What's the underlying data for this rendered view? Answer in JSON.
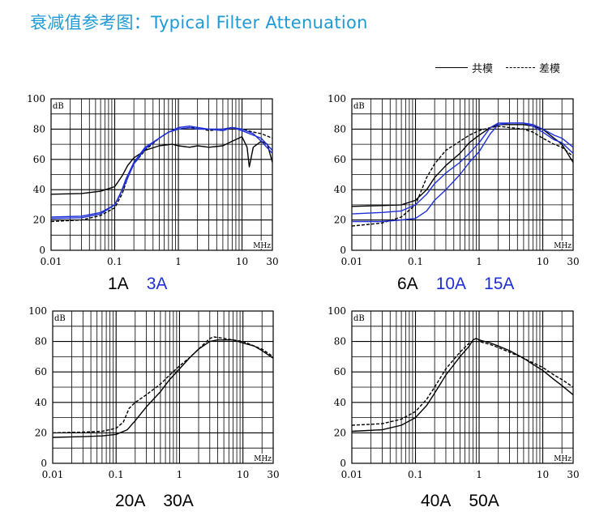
{
  "page": {
    "title": "衰减值参考图：Typical Filter Attenuation"
  },
  "legend": {
    "cm_label": "共模",
    "dm_label": "差模"
  },
  "colors": {
    "title": "#1e9ad6",
    "black_series": "#000000",
    "blue_series": "#1e2fd6"
  },
  "chart_data": [
    {
      "type": "line",
      "x_scale": "log",
      "xlim": [
        0.01,
        30
      ],
      "ylim": [
        0,
        100
      ],
      "x_ticks": [
        "0.01",
        "0.1",
        "1",
        "10",
        "30"
      ],
      "y_ticks": [
        "0",
        "20",
        "40",
        "60",
        "80",
        "100"
      ],
      "ylabel": "dB",
      "xlabel": "MHz",
      "captions": [
        {
          "text": "1A",
          "color": "#000000"
        },
        {
          "text": "3A",
          "color": "#1e2fd6"
        }
      ],
      "series": [
        {
          "mode": "共模",
          "color": "#000000",
          "dash": false,
          "x": [
            0.01,
            0.03,
            0.06,
            0.1,
            0.13,
            0.16,
            0.2,
            0.3,
            0.5,
            0.8,
            1,
            1.5,
            2,
            3,
            5,
            7,
            10,
            12,
            13,
            15,
            20,
            25,
            30
          ],
          "y": [
            37,
            37.5,
            39,
            42,
            49,
            56,
            61,
            66,
            69,
            70,
            69,
            68,
            69,
            68,
            69,
            72,
            75,
            68,
            55,
            68,
            72,
            70,
            58
          ]
        },
        {
          "mode": "差模",
          "color": "#000000",
          "dash": true,
          "x": [
            0.01,
            0.03,
            0.06,
            0.1,
            0.13,
            0.17,
            0.2,
            0.3,
            0.5,
            0.7,
            1,
            1.5,
            2,
            3,
            5,
            7,
            10,
            15,
            20,
            30
          ],
          "y": [
            19,
            20,
            23,
            28,
            37,
            51,
            57,
            66,
            74,
            78,
            80,
            81,
            81,
            79,
            80,
            81,
            80,
            78,
            77,
            74
          ]
        },
        {
          "mode": "共模",
          "color": "#1e2fd6",
          "dash": false,
          "x": [
            0.01,
            0.03,
            0.06,
            0.1,
            0.12,
            0.15,
            0.2,
            0.3,
            0.5,
            0.7,
            1,
            1.5,
            2,
            3,
            5,
            7,
            10,
            15,
            20,
            30
          ],
          "y": [
            21,
            21.5,
            24,
            30,
            36,
            47,
            58,
            68,
            74,
            78,
            81,
            82,
            81,
            80,
            80,
            81,
            79,
            76,
            74,
            66
          ]
        },
        {
          "mode": "差模",
          "color": "#1e2fd6",
          "dash": false,
          "x": [
            0.01,
            0.03,
            0.06,
            0.1,
            0.15,
            0.2,
            0.3,
            0.5,
            0.7,
            1,
            1.5,
            2,
            3,
            5,
            7,
            10,
            15,
            20,
            30
          ],
          "y": [
            22,
            22.5,
            25,
            30,
            45,
            57,
            67,
            74,
            78,
            80,
            81,
            80,
            80,
            79,
            81,
            80,
            77,
            72,
            64
          ]
        }
      ]
    },
    {
      "type": "line",
      "x_scale": "log",
      "xlim": [
        0.01,
        30
      ],
      "ylim": [
        0,
        100
      ],
      "x_ticks": [
        "0.01",
        "0.1",
        "1",
        "10",
        "30"
      ],
      "y_ticks": [
        "0",
        "20",
        "40",
        "60",
        "80",
        "100"
      ],
      "ylabel": "dB",
      "xlabel": "MHz",
      "captions": [
        {
          "text": "6A",
          "color": "#000000"
        },
        {
          "text": "10A",
          "color": "#1e2fd6"
        },
        {
          "text": "15A",
          "color": "#1e2fd6"
        }
      ],
      "series": [
        {
          "mode": "共模",
          "color": "#000000",
          "dash": false,
          "x": [
            0.01,
            0.03,
            0.06,
            0.1,
            0.15,
            0.2,
            0.3,
            0.5,
            0.7,
            1,
            1.5,
            2,
            3,
            5,
            7,
            10,
            15,
            20,
            30
          ],
          "y": [
            29,
            29.5,
            30,
            33,
            40,
            48,
            56,
            64,
            71,
            76,
            81,
            83,
            83,
            83,
            82,
            80,
            74,
            70,
            58
          ]
        },
        {
          "mode": "差模",
          "color": "#000000",
          "dash": true,
          "x": [
            0.01,
            0.03,
            0.06,
            0.1,
            0.15,
            0.2,
            0.3,
            0.5,
            0.7,
            1,
            1.5,
            2,
            3,
            5,
            7,
            10,
            15,
            20,
            30
          ],
          "y": [
            16,
            18,
            22,
            30,
            48,
            57,
            66,
            72,
            76,
            79,
            81,
            82,
            81,
            80,
            78,
            74,
            70,
            68,
            62
          ]
        },
        {
          "mode": "共模",
          "color": "#1e2fd6",
          "dash": false,
          "x": [
            0.01,
            0.03,
            0.06,
            0.1,
            0.15,
            0.2,
            0.3,
            0.5,
            0.7,
            1,
            1.5,
            2,
            3,
            5,
            7,
            10,
            15,
            20,
            30
          ],
          "y": [
            19,
            19,
            20,
            21,
            26,
            33,
            40,
            50,
            58,
            65,
            77,
            83,
            84,
            84,
            82,
            78,
            73,
            71,
            64
          ]
        },
        {
          "mode": "差模",
          "color": "#1e2fd6",
          "dash": false,
          "x": [
            0.01,
            0.03,
            0.06,
            0.1,
            0.15,
            0.2,
            0.3,
            0.5,
            0.7,
            1,
            1.5,
            2,
            3,
            5,
            7,
            10,
            15,
            20,
            30
          ],
          "y": [
            24,
            25,
            26,
            30,
            37,
            44,
            51,
            58,
            64,
            71,
            81,
            84,
            84,
            84,
            83,
            80,
            76,
            74,
            68
          ]
        }
      ]
    },
    {
      "type": "line",
      "x_scale": "log",
      "xlim": [
        0.01,
        30
      ],
      "ylim": [
        0,
        100
      ],
      "x_ticks": [
        "0.01",
        "0.1",
        "1",
        "10",
        "30"
      ],
      "y_ticks": [
        "0",
        "20",
        "40",
        "60",
        "80",
        "100"
      ],
      "ylabel": "dB",
      "xlabel": "MHz",
      "captions": [
        {
          "text": "20A",
          "color": "#000000"
        },
        {
          "text": "30A",
          "color": "#000000"
        }
      ],
      "series": [
        {
          "mode": "共模",
          "color": "#000000",
          "dash": false,
          "x": [
            0.01,
            0.03,
            0.06,
            0.1,
            0.15,
            0.2,
            0.3,
            0.5,
            0.7,
            1,
            1.5,
            2,
            3,
            4,
            5,
            7,
            10,
            15,
            20,
            30
          ],
          "y": [
            17,
            17.5,
            18,
            19,
            22,
            28,
            37,
            47,
            55,
            62,
            70,
            75,
            80,
            81,
            81,
            81,
            79,
            77,
            74,
            69
          ]
        },
        {
          "mode": "差模",
          "color": "#000000",
          "dash": true,
          "x": [
            0.01,
            0.03,
            0.06,
            0.1,
            0.13,
            0.16,
            0.2,
            0.3,
            0.5,
            0.7,
            1,
            1.5,
            2,
            3,
            3.5,
            5,
            7,
            10,
            15,
            20,
            30
          ],
          "y": [
            20,
            20.5,
            21,
            23,
            27,
            36,
            40,
            45,
            52,
            58,
            64,
            70,
            75,
            82,
            83,
            82,
            81,
            80,
            77,
            75,
            70
          ]
        }
      ]
    },
    {
      "type": "line",
      "x_scale": "log",
      "xlim": [
        0.01,
        30
      ],
      "ylim": [
        0,
        100
      ],
      "x_ticks": [
        "0.01",
        "0.1",
        "1",
        "10",
        "30"
      ],
      "y_ticks": [
        "0",
        "20",
        "40",
        "60",
        "80",
        "100"
      ],
      "ylabel": "dB",
      "xlabel": "MHz",
      "captions": [
        {
          "text": "40A",
          "color": "#000000"
        },
        {
          "text": "50A",
          "color": "#000000"
        }
      ],
      "series": [
        {
          "mode": "共模",
          "color": "#000000",
          "dash": false,
          "x": [
            0.01,
            0.03,
            0.06,
            0.1,
            0.15,
            0.2,
            0.3,
            0.5,
            0.7,
            0.8,
            0.9,
            1,
            1.5,
            2,
            3,
            5,
            7,
            10,
            15,
            20,
            30
          ],
          "y": [
            21,
            22,
            25,
            30,
            38,
            46,
            58,
            70,
            77,
            81,
            82,
            81,
            79,
            77,
            74,
            69,
            65,
            61,
            55,
            51,
            45
          ]
        },
        {
          "mode": "差模",
          "color": "#000000",
          "dash": true,
          "x": [
            0.01,
            0.03,
            0.06,
            0.1,
            0.15,
            0.2,
            0.3,
            0.5,
            0.7,
            0.8,
            1,
            1.5,
            2,
            3,
            5,
            7,
            10,
            15,
            20,
            30
          ],
          "y": [
            25,
            26,
            29,
            34,
            42,
            50,
            62,
            73,
            79,
            80,
            80,
            78,
            76,
            73,
            69,
            66,
            63,
            58,
            55,
            50
          ]
        }
      ]
    }
  ]
}
